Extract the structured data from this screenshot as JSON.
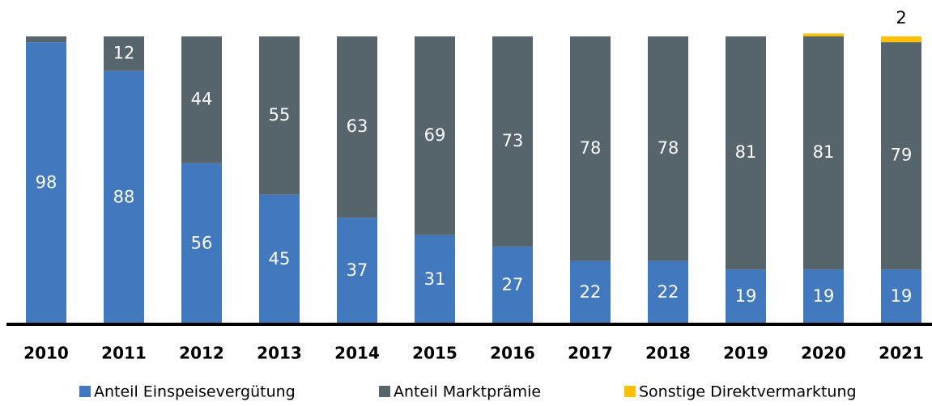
{
  "chart_data": {
    "type": "stacked_bar",
    "categories": [
      "2010",
      "2011",
      "2012",
      "2013",
      "2014",
      "2015",
      "2016",
      "2017",
      "2018",
      "2019",
      "2020",
      "2021"
    ],
    "ylim": [
      0,
      100
    ],
    "series": [
      {
        "name": "Anteil Einspeisevergütung",
        "color": "#4178be",
        "values": [
          98,
          88,
          56,
          45,
          37,
          31,
          27,
          22,
          22,
          19,
          19,
          19
        ],
        "value_labels": [
          "98",
          "88",
          "56",
          "45",
          "37",
          "31",
          "27",
          "22",
          "22",
          "19",
          "19",
          "19"
        ]
      },
      {
        "name": "Anteil Marktprämie",
        "color": "#56646c",
        "values": [
          2,
          12,
          44,
          55,
          63,
          69,
          73,
          78,
          78,
          81,
          81,
          79
        ],
        "value_labels": [
          null,
          "12",
          "44",
          "55",
          "63",
          "69",
          "73",
          "78",
          "78",
          "81",
          "81",
          "79"
        ]
      },
      {
        "name": "Sonstige Direktvermarktung",
        "color": "#ffc000",
        "values": [
          0,
          0,
          0,
          0,
          0,
          0,
          0,
          0,
          0,
          0,
          1,
          2
        ],
        "value_labels": [
          null,
          null,
          null,
          null,
          null,
          null,
          null,
          null,
          null,
          null,
          null,
          "2"
        ]
      }
    ]
  }
}
